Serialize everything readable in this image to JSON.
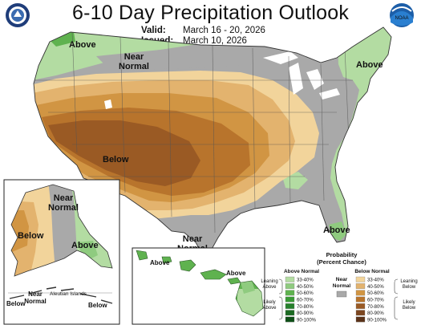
{
  "header": {
    "title": "6-10 Day Precipitation Outlook",
    "valid_label": "Valid:",
    "valid_range": "March 16 - 20, 2026",
    "issued_label": "Issued:",
    "issued_date": "March 10, 2026"
  },
  "logos": {
    "left": {
      "icon": "department-of-commerce-seal-icon"
    },
    "right": {
      "icon": "noaa-logo-icon",
      "text": "NOAA"
    }
  },
  "map_labels": {
    "conus_above_northwest": "Above",
    "conus_near_normal_north_line1": "Near",
    "conus_near_normal_north_line2": "Normal",
    "conus_above_northeast": "Above",
    "conus_below_southwest": "Below",
    "conus_near_normal_texas_line1": "Near",
    "conus_near_normal_texas_line2": "Normal",
    "conus_above_florida": "Above",
    "alaska_below": "Below",
    "alaska_near_normal_line1": "Near",
    "alaska_near_normal_line2": "Normal",
    "alaska_above": "Above",
    "aleutian_below_left": "Below",
    "aleutian_near_normal_line1": "Near",
    "aleutian_near_normal_line2": "Normal",
    "aleutian_islands": "Aleutian Islands",
    "aleutian_below_right": "Below",
    "hawaii_above_west": "Above",
    "hawaii_above_east": "Above"
  },
  "legend": {
    "title_line1": "Probability",
    "title_line2": "(Percent Chance)",
    "above_heading": "Above Normal",
    "below_heading": "Below Normal",
    "near_heading_line1": "Near",
    "near_heading_line2": "Normal",
    "leaning_above_line1": "Leaning",
    "leaning_above_line2": "Above",
    "likely_above_line1": "Likely",
    "likely_above_line2": "Above",
    "leaning_below_line1": "Leaning",
    "leaning_below_line2": "Below",
    "likely_below_line1": "Likely",
    "likely_below_line2": "Below",
    "categories": [
      "33-40%",
      "40-50%",
      "50-60%",
      "60-70%",
      "70-80%",
      "80-90%",
      "90-100%"
    ],
    "above_colors": [
      "#b3dca2",
      "#8fcb7f",
      "#5fb24f",
      "#3a9a36",
      "#26802b",
      "#1b6a22",
      "#0f4f17"
    ],
    "below_colors": [
      "#f2d49b",
      "#e3b36e",
      "#d19543",
      "#b8742c",
      "#9a5a24",
      "#7c4620",
      "#5a3219"
    ],
    "near_color": "#a9a9a9"
  },
  "colors": {
    "above_33_40": "#b3dca2",
    "above_40_50": "#8fcb7f",
    "above_50_60": "#5fb24f",
    "near_normal": "#a9a9a9",
    "below_33_40": "#f2d49b",
    "below_40_50": "#e3b36e",
    "below_50_60": "#d19543",
    "below_60_70": "#b8742c",
    "below_70_80": "#9a5a24"
  }
}
